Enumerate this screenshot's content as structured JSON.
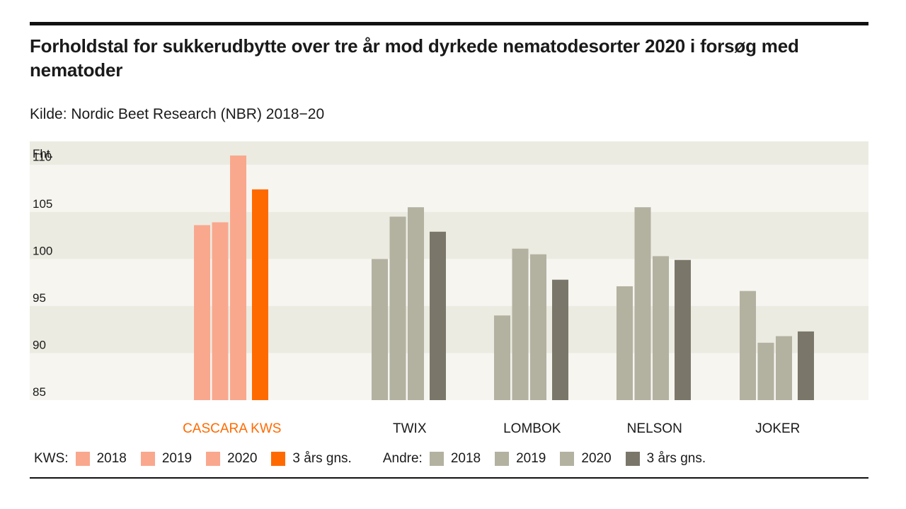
{
  "chart_data": {
    "type": "bar",
    "title": "Forholdstal for sukkerudbytte over tre år mod dyrkede nematodesorter 2020 i forsøg med nematoder",
    "subtitle": "Kilde: Nordic Beet Research (NBR) 2018−20",
    "ylabel": "Fht.",
    "ylim": [
      85,
      112.5
    ],
    "yticks": [
      85,
      90,
      95,
      100,
      105,
      110
    ],
    "grid": "alternating horizontal bands",
    "categories": [
      "CASCARA KWS",
      "TWIX",
      "LOMBOK",
      "NELSON",
      "JOKER"
    ],
    "category_groups": [
      "kws",
      "andre",
      "andre",
      "andre",
      "andre"
    ],
    "series": [
      {
        "name": "2018",
        "values": [
          103.6,
          100.0,
          94.0,
          97.1,
          96.6
        ]
      },
      {
        "name": "2019",
        "values": [
          103.9,
          104.5,
          101.1,
          105.5,
          91.1
        ]
      },
      {
        "name": "2020",
        "values": [
          111.0,
          105.5,
          100.5,
          100.3,
          91.8
        ]
      },
      {
        "name": "3 års gns.",
        "values": [
          107.4,
          102.9,
          97.8,
          99.9,
          92.3
        ]
      }
    ],
    "colors": {
      "kws": [
        "#f9a88e",
        "#f9a88e",
        "#f9a88e",
        "#ff6a00"
      ],
      "andre": [
        "#b3b1a0",
        "#b3b1a0",
        "#b3b1a0",
        "#7a776a"
      ],
      "band_dark": "#ecebe1",
      "band_light": "#f6f5f0",
      "kws_label": "#ff6a00"
    },
    "legend": {
      "position": "bottom",
      "kws_label": "KWS:",
      "andre_label": "Andre:",
      "items": [
        "2018",
        "2019",
        "2020",
        "3 års gns."
      ]
    }
  }
}
